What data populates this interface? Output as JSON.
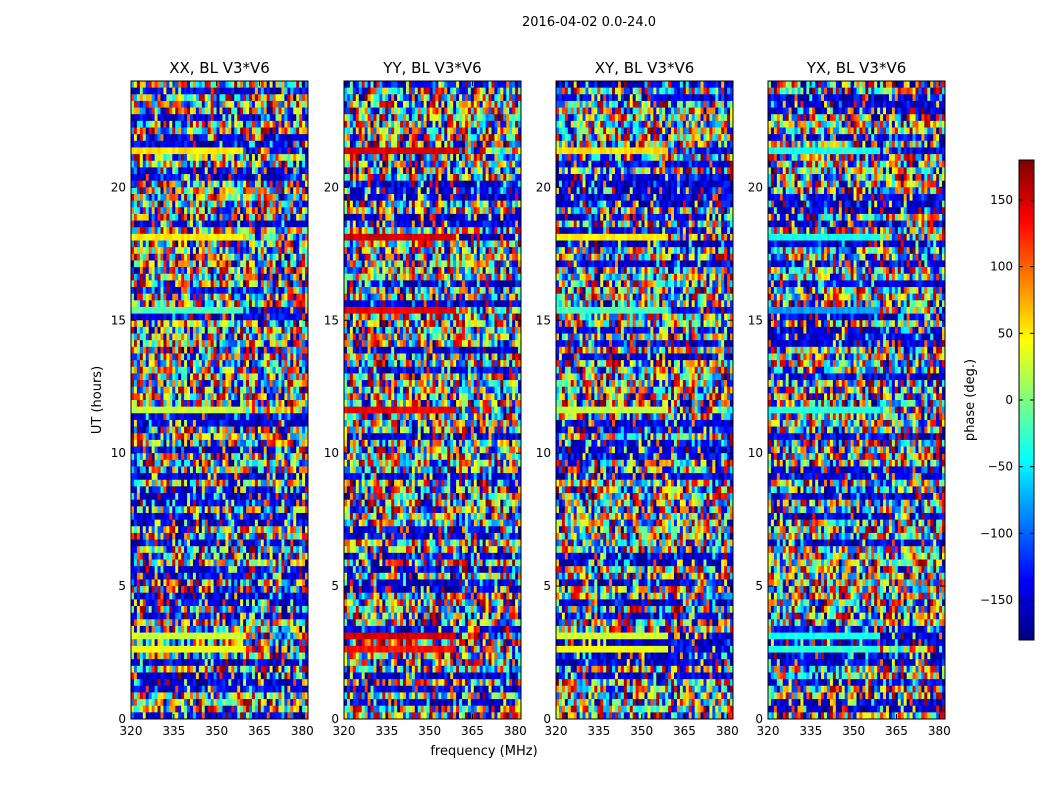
{
  "figure": {
    "suptitle": "2016-04-02 0.0-24.0",
    "xlabel": "frequency (MHz)",
    "ylabel": "UT (hours)"
  },
  "chart_data": {
    "type": "heatmap",
    "x": {
      "range": [
        320,
        382
      ],
      "ticks": [
        320,
        335,
        350,
        365,
        380
      ],
      "label": "frequency (MHz)"
    },
    "y": {
      "range": [
        0,
        24
      ],
      "ticks": [
        0,
        5,
        10,
        15,
        20
      ],
      "label": "UT (hours)"
    },
    "colormap": "jet",
    "panels": [
      {
        "title": "XX, BL V3*V6"
      },
      {
        "title": "YY, BL V3*V6"
      },
      {
        "title": "XY, BL V3*V6"
      },
      {
        "title": "YX, BL V3*V6"
      }
    ],
    "colorbar": {
      "label": "phase (deg.)",
      "range": [
        -180,
        180
      ],
      "ticks": [
        -150,
        -100,
        -50,
        0,
        50,
        100,
        150
      ],
      "tick_labels": [
        "−150",
        "−100",
        "−50",
        "0",
        "50",
        "100",
        "150"
      ]
    },
    "coherent_bands": [
      {
        "t_range": [
          21.2,
          21.6
        ],
        "phase": [
          55,
          150,
          55,
          -40
        ]
      },
      {
        "t_range": [
          18.0,
          18.3
        ],
        "phase": [
          50,
          150,
          50,
          -40
        ]
      },
      {
        "t_range": [
          15.2,
          15.4
        ],
        "phase": [
          -20,
          140,
          -20,
          -80
        ]
      },
      {
        "t_range": [
          11.5,
          11.7
        ],
        "phase": [
          25,
          140,
          25,
          -30
        ]
      },
      {
        "t_range": [
          3.0,
          3.2
        ],
        "phase": [
          30,
          150,
          30,
          -40
        ]
      },
      {
        "t_range": [
          2.5,
          2.7
        ],
        "phase": [
          40,
          130,
          40,
          -30
        ]
      }
    ],
    "colors": [
      "#00007f",
      "#0000ff",
      "#007fff",
      "#00ffff",
      "#7fff7f",
      "#ffff00",
      "#ff7f00",
      "#ff0000",
      "#7f0000"
    ]
  }
}
